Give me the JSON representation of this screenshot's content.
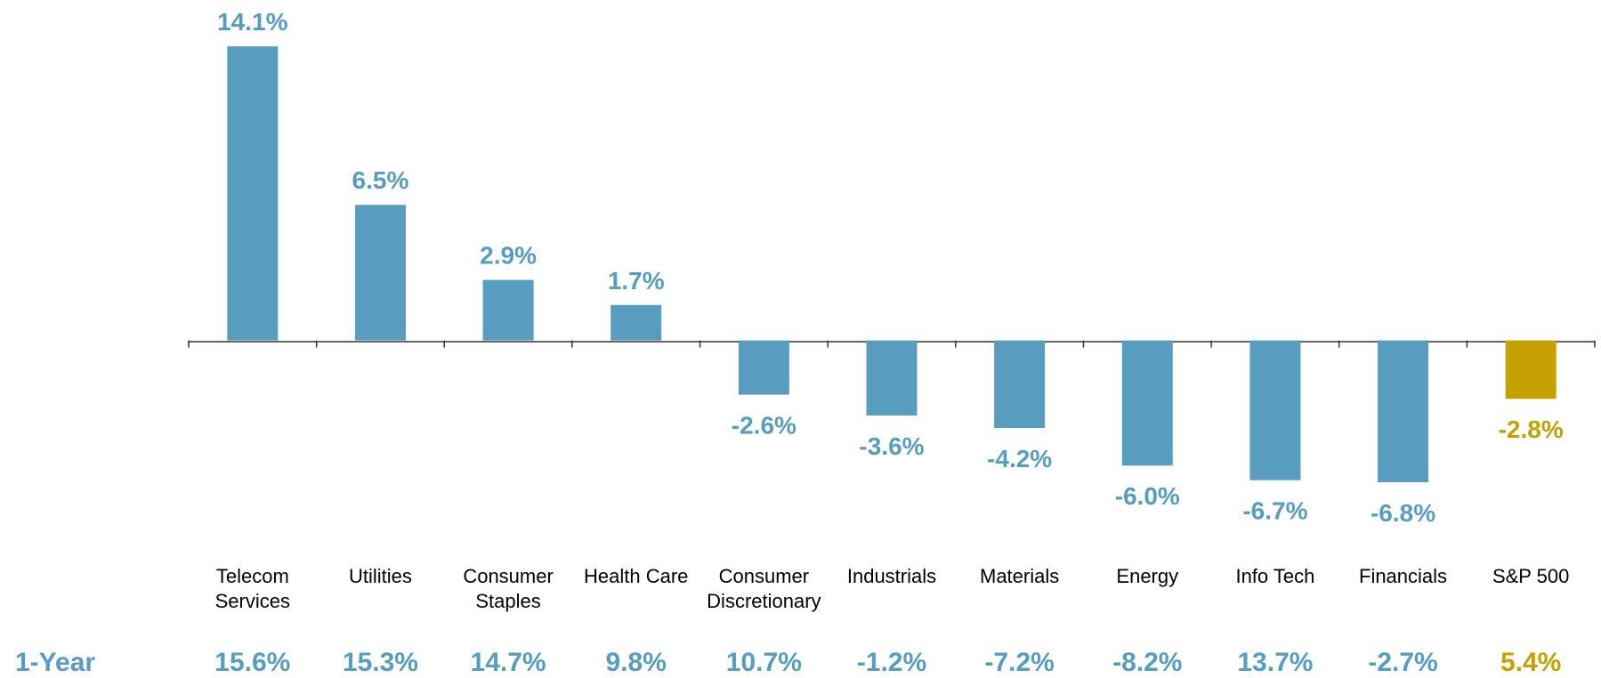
{
  "chart_data": {
    "type": "bar",
    "categories": [
      "Telecom Services",
      "Utilities",
      "Consumer Staples",
      "Health Care",
      "Consumer Discretionary",
      "Industrials",
      "Materials",
      "Energy",
      "Info Tech",
      "Financials",
      "S&P 500"
    ],
    "values": [
      14.1,
      6.5,
      2.9,
      1.7,
      -2.6,
      -3.6,
      -4.2,
      -6.0,
      -6.7,
      -6.8,
      -2.8
    ],
    "value_labels": [
      "14.1%",
      "6.5%",
      "2.9%",
      "1.7%",
      "-2.6%",
      "-3.6%",
      "-4.2%",
      "-6.0%",
      "-6.7%",
      "-6.8%",
      "-2.8%"
    ],
    "colors": [
      "#589dc0",
      "#589dc0",
      "#589dc0",
      "#589dc0",
      "#589dc0",
      "#589dc0",
      "#589dc0",
      "#589dc0",
      "#589dc0",
      "#589dc0",
      "#c4a000"
    ],
    "ylim": [
      -10,
      15
    ],
    "row_label": "1-Year",
    "row_values": [
      "15.6%",
      "15.3%",
      "14.7%",
      "9.8%",
      "10.7%",
      "-1.2%",
      "-7.2%",
      "-8.2%",
      "13.7%",
      "-2.7%",
      "5.4%"
    ]
  }
}
